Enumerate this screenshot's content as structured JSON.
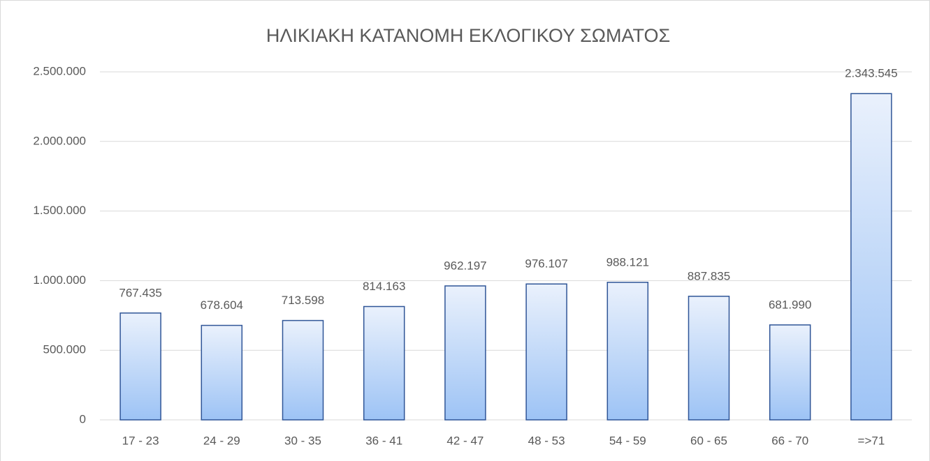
{
  "chart_data": {
    "type": "bar",
    "title": "ΗΛΙΚΙΑΚΗ ΚΑΤΑΝΟΜΗ ΕΚΛΟΓΙΚΟΥ ΣΩΜΑΤΟΣ",
    "categories": [
      "17 - 23",
      "24 - 29",
      "30 - 35",
      "36 - 41",
      "42 - 47",
      "48 - 53",
      "54 - 59",
      "60 - 65",
      "66 - 70",
      "=>71"
    ],
    "values": [
      767435,
      678604,
      713598,
      814163,
      962197,
      976107,
      988121,
      887835,
      681990,
      2343545
    ],
    "value_labels": [
      "767.435",
      "678.604",
      "713.598",
      "814.163",
      "962.197",
      "976.107",
      "988.121",
      "887.835",
      "681.990",
      "2.343.545"
    ],
    "color": "#9dc3f5",
    "ylim": [
      0,
      2500000
    ],
    "yticks": [
      0,
      {
        "value": 500000,
        "label": "500.000"
      },
      {
        "value": 1000000,
        "label": "1.000.000"
      },
      {
        "value": 1500000,
        "label": "1.500.000"
      },
      {
        "value": 2000000,
        "label": "2.000.000"
      },
      {
        "value": 2500000,
        "label": "2.500.000"
      }
    ],
    "grid": true
  }
}
